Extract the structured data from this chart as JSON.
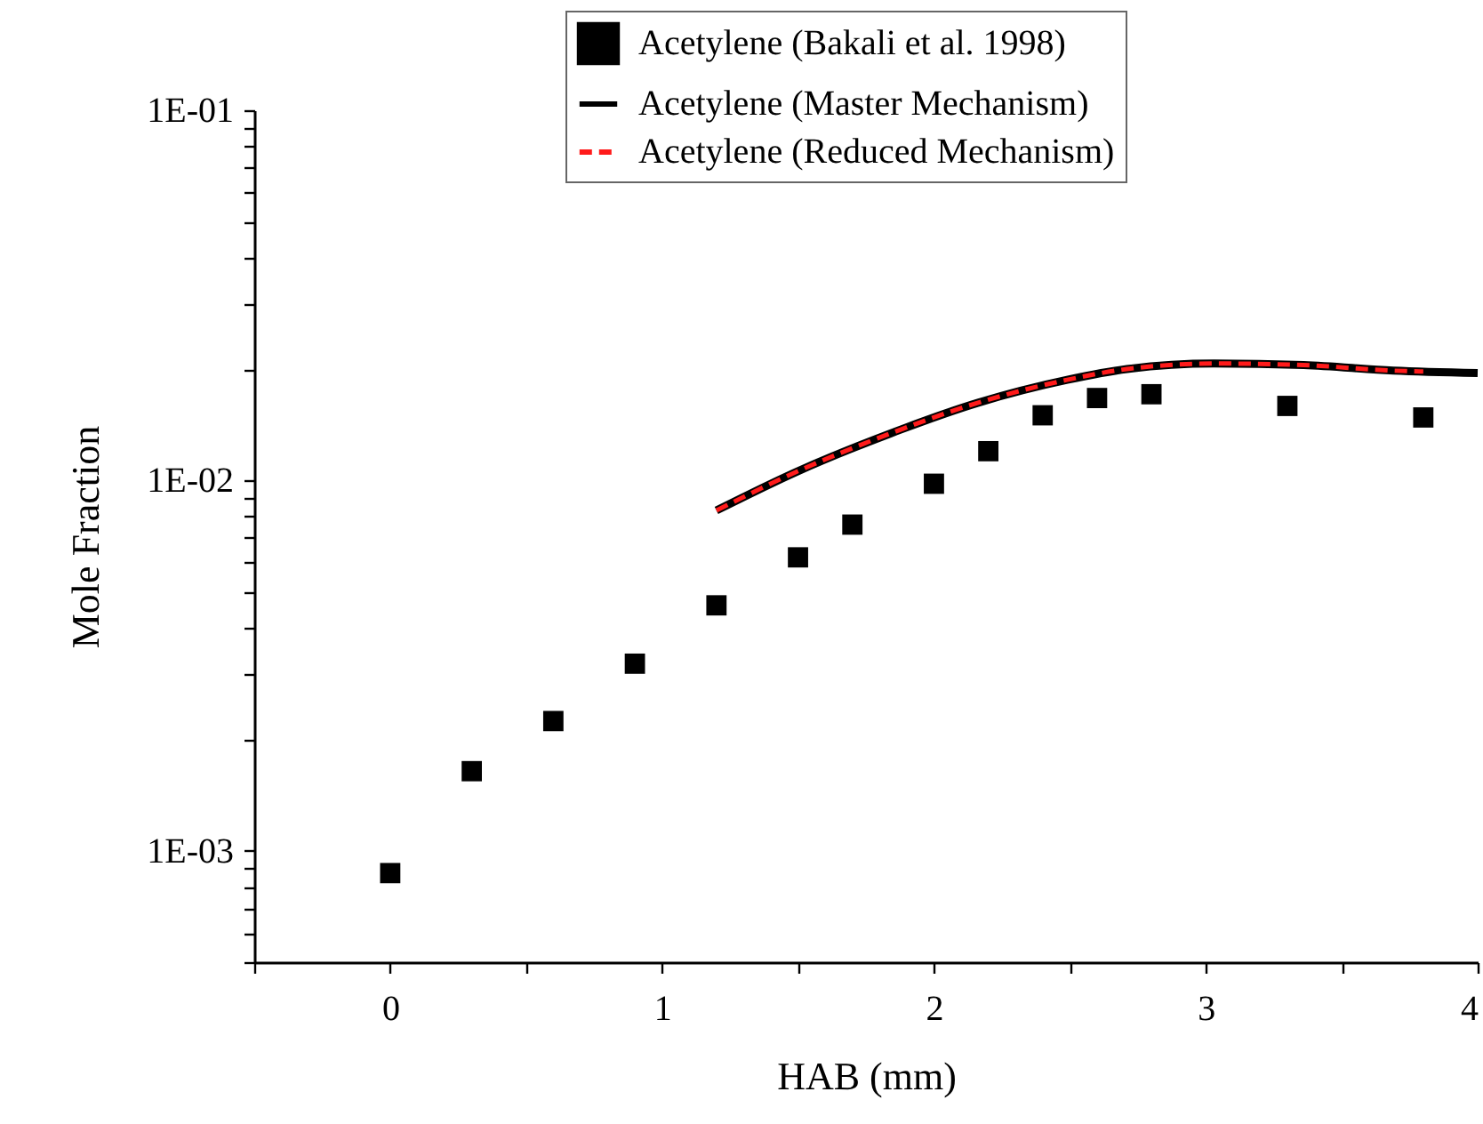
{
  "chart_data": {
    "type": "scatter",
    "xlabel": "HAB (mm)",
    "ylabel": "Mole Fraction",
    "log": "y",
    "grid": false,
    "legend": "top",
    "xlim": [
      -0.5,
      4
    ],
    "ylim": [
      0.0005,
      0.1
    ],
    "xticks": [
      {
        "value": -0.5,
        "label": null
      },
      0,
      {
        "value": 0.5,
        "label": null
      },
      1,
      {
        "value": 1.5,
        "label": null
      },
      2,
      {
        "value": 2.5,
        "label": null
      },
      3,
      {
        "value": 3.5,
        "label": null
      },
      4
    ],
    "yticks": [
      {
        "value": 0.0005,
        "label": null
      },
      {
        "value": 0.0006,
        "label": null
      },
      {
        "value": 0.0007,
        "label": null
      },
      {
        "value": 0.0008,
        "label": null
      },
      {
        "value": 0.0009,
        "label": null
      },
      {
        "value": 0.001,
        "label": "1E-03"
      },
      {
        "value": 0.002,
        "label": null
      },
      {
        "value": 0.003,
        "label": null
      },
      {
        "value": 0.004,
        "label": null
      },
      {
        "value": 0.005,
        "label": null
      },
      {
        "value": 0.006,
        "label": null
      },
      {
        "value": 0.007,
        "label": null
      },
      {
        "value": 0.008,
        "label": null
      },
      {
        "value": 0.009,
        "label": null
      },
      {
        "value": 0.01,
        "label": "1E-02"
      },
      {
        "value": 0.02,
        "label": null
      },
      {
        "value": 0.03,
        "label": null
      },
      {
        "value": 0.04,
        "label": null
      },
      {
        "value": 0.05,
        "label": null
      },
      {
        "value": 0.06,
        "label": null
      },
      {
        "value": 0.07,
        "label": null
      },
      {
        "value": 0.08,
        "label": null
      },
      {
        "value": 0.09,
        "label": null
      },
      {
        "value": 0.1,
        "label": "1E-01"
      }
    ],
    "series": [
      {
        "name": "Acetylene (Bakali et al. 1998)",
        "marker": "square",
        "color": "#000000",
        "x": [
          0,
          0.3,
          0.6,
          0.9,
          1.2,
          1.5,
          1.7,
          2.0,
          2.2,
          2.4,
          2.6,
          2.8,
          3.3,
          3.8
        ],
        "values": [
          0.00087,
          0.00164,
          0.00224,
          0.0032,
          0.0046,
          0.0062,
          0.0076,
          0.0098,
          0.012,
          0.015,
          0.0167,
          0.0171,
          0.0159,
          0.0148
        ]
      },
      {
        "name": "Acetylene (Master Mechanism)",
        "type": "line",
        "line_style": "solid",
        "color": "#000000",
        "x": [
          1.2,
          1.5,
          1.84,
          2.16,
          2.49,
          2.71,
          3.03,
          3.36,
          3.69,
          4.0
        ],
        "values": [
          0.0083,
          0.0106,
          0.0134,
          0.0162,
          0.0187,
          0.02,
          0.0207,
          0.0205,
          0.0198,
          0.0195
        ]
      },
      {
        "name": "Acetylene (Reduced Mechanism)",
        "type": "line",
        "line_style": "dashed",
        "color": "#ff1a1a",
        "x": [
          1.2,
          1.5,
          1.84,
          2.16,
          2.49,
          2.71,
          3.03,
          3.36,
          3.69,
          3.8
        ],
        "values": [
          0.0083,
          0.0106,
          0.0134,
          0.0162,
          0.0187,
          0.02,
          0.0207,
          0.0205,
          0.0198,
          0.0197
        ]
      }
    ]
  }
}
